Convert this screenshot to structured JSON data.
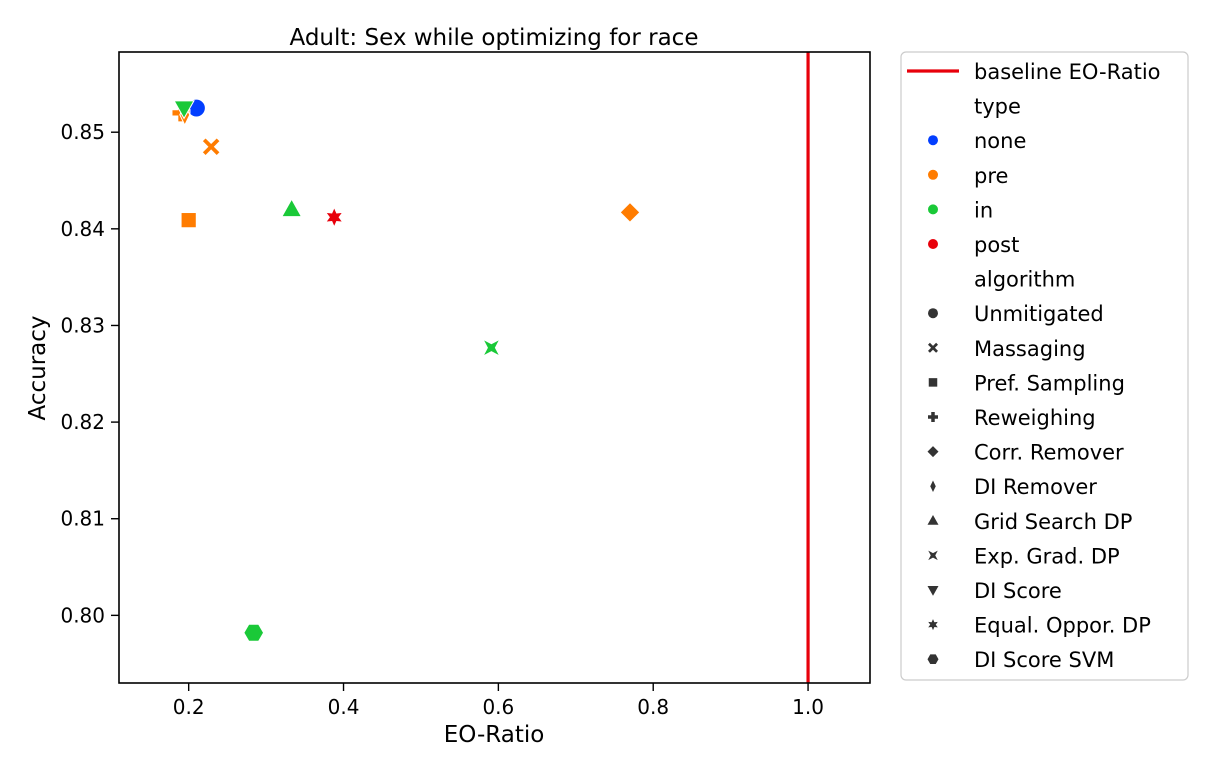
{
  "chart_data": {
    "type": "scatter",
    "title": "Adult: Sex while optimizing for race",
    "xlabel": "EO-Ratio",
    "ylabel": "Accuracy",
    "xlim": [
      0.11,
      1.08
    ],
    "ylim": [
      0.793,
      0.8583
    ],
    "xticks": [
      0.2,
      0.4,
      0.6,
      0.8,
      1.0
    ],
    "xtick_labels": [
      "0.2",
      "0.4",
      "0.6",
      "0.8",
      "1.0"
    ],
    "yticks": [
      0.8,
      0.81,
      0.82,
      0.83,
      0.84,
      0.85
    ],
    "ytick_labels": [
      "0.80",
      "0.81",
      "0.82",
      "0.83",
      "0.84",
      "0.85"
    ],
    "grid": false,
    "legend_position": "outside-right",
    "baseline": {
      "label": "baseline EO-Ratio",
      "x": 1.0,
      "color": "#e8000b"
    },
    "legend": {
      "type_header": "type",
      "types": [
        {
          "name": "none",
          "color": "#023eff"
        },
        {
          "name": "pre",
          "color": "#ff7c00"
        },
        {
          "name": "in",
          "color": "#1ac938"
        },
        {
          "name": "post",
          "color": "#e8000b"
        }
      ],
      "algorithm_header": "algorithm",
      "algorithms": [
        {
          "name": "Unmitigated",
          "marker": "circle"
        },
        {
          "name": "Massaging",
          "marker": "x"
        },
        {
          "name": "Pref. Sampling",
          "marker": "square"
        },
        {
          "name": "Reweighing",
          "marker": "plus"
        },
        {
          "name": "Corr. Remover",
          "marker": "diamond"
        },
        {
          "name": "DI Remover",
          "marker": "thin-diamond"
        },
        {
          "name": "Grid Search DP",
          "marker": "triangle-up"
        },
        {
          "name": "Exp. Grad. DP",
          "marker": "bowtie"
        },
        {
          "name": "DI Score",
          "marker": "triangle-down"
        },
        {
          "name": "Equal. Oppor. DP",
          "marker": "star"
        },
        {
          "name": "DI Score SVM",
          "marker": "hexagon"
        }
      ]
    },
    "points": [
      {
        "algorithm": "Unmitigated",
        "type": "none",
        "x": 0.21,
        "y": 0.8525
      },
      {
        "algorithm": "Reweighing",
        "type": "pre",
        "x": 0.19,
        "y": 0.852
      },
      {
        "algorithm": "DI Remover",
        "type": "pre",
        "x": 0.195,
        "y": 0.8518
      },
      {
        "algorithm": "Massaging",
        "type": "pre",
        "x": 0.229,
        "y": 0.8485
      },
      {
        "algorithm": "Pref. Sampling",
        "type": "pre",
        "x": 0.2,
        "y": 0.8409
      },
      {
        "algorithm": "Corr. Remover",
        "type": "pre",
        "x": 0.77,
        "y": 0.8417
      },
      {
        "algorithm": "Grid Search DP",
        "type": "in",
        "x": 0.333,
        "y": 0.842
      },
      {
        "algorithm": "Equal. Oppor. DP",
        "type": "post",
        "x": 0.388,
        "y": 0.8412
      },
      {
        "algorithm": "Exp. Grad. DP",
        "type": "in",
        "x": 0.591,
        "y": 0.8277
      },
      {
        "algorithm": "DI Score SVM",
        "type": "in",
        "x": 0.284,
        "y": 0.7982
      },
      {
        "algorithm": "DI Score",
        "type": "in",
        "x": 0.194,
        "y": 0.8525
      }
    ]
  }
}
